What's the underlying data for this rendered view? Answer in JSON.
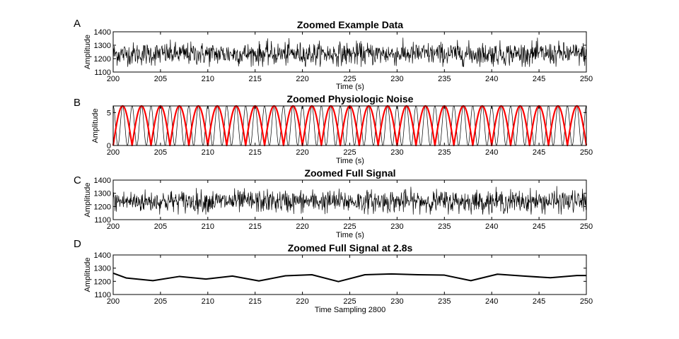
{
  "chart_data": [
    {
      "panel": "A",
      "type": "line",
      "title": "Zoomed Example Data",
      "xlabel": "Time (s)",
      "ylabel": "Amplitude",
      "xlim": [
        200,
        250
      ],
      "ylim": [
        1100,
        1400
      ],
      "xticks": [
        200,
        205,
        210,
        215,
        220,
        225,
        230,
        235,
        240,
        245,
        250
      ],
      "yticks": [
        1100,
        1200,
        1300,
        1400
      ],
      "series": [
        {
          "color": "#000000",
          "noise": {
            "mean": 1235,
            "spread": 42,
            "min": 1140,
            "max": 1355,
            "samples": 1200
          }
        }
      ]
    },
    {
      "panel": "B",
      "type": "line",
      "title": "Zoomed Physiologic Noise",
      "xlabel": "Time (s)",
      "ylabel": "Amplitude",
      "xlim": [
        200,
        250
      ],
      "ylim": [
        0,
        6
      ],
      "xticks": [
        200,
        205,
        210,
        215,
        220,
        225,
        230,
        235,
        240,
        245,
        250
      ],
      "yticks": [
        0,
        5
      ],
      "series": [
        {
          "color": "#000000",
          "wave": {
            "min": 0,
            "max": 6,
            "period": 1.0,
            "shape": "cosine"
          }
        },
        {
          "color": "#ff0000",
          "wave": {
            "min": 0,
            "max": 6,
            "period": 2.0,
            "shape": "abs-sine"
          }
        }
      ]
    },
    {
      "panel": "C",
      "type": "line",
      "title": "Zoomed Full Signal",
      "xlabel": "Time (s)",
      "ylabel": "Amplitude",
      "xlim": [
        200,
        250
      ],
      "ylim": [
        1100,
        1400
      ],
      "xticks": [
        200,
        205,
        210,
        215,
        220,
        225,
        230,
        235,
        240,
        245,
        250
      ],
      "yticks": [
        1100,
        1200,
        1300,
        1400
      ],
      "series": [
        {
          "color": "#000000",
          "noise": {
            "mean": 1238,
            "spread": 42,
            "min": 1140,
            "max": 1360,
            "samples": 1200
          }
        }
      ]
    },
    {
      "panel": "D",
      "type": "line",
      "title": "Zoomed Full Signal at 2.8s",
      "xlabel": "Time Sampling 2800",
      "ylabel": "Amplitude",
      "xlim": [
        200,
        250
      ],
      "ylim": [
        1100,
        1400
      ],
      "xticks": [
        200,
        205,
        210,
        215,
        220,
        225,
        230,
        235,
        240,
        245,
        250
      ],
      "yticks": [
        1100,
        1200,
        1300,
        1400
      ],
      "series": [
        {
          "color": "#000000",
          "x": [
            200,
            201.4,
            204.2,
            207.0,
            209.8,
            212.6,
            215.4,
            218.2,
            221.0,
            223.8,
            226.6,
            229.4,
            232.2,
            235.0,
            237.8,
            240.6,
            243.4,
            246.2,
            249.0,
            250
          ],
          "y": [
            1262,
            1225,
            1205,
            1237,
            1217,
            1240,
            1203,
            1242,
            1250,
            1198,
            1250,
            1256,
            1250,
            1247,
            1205,
            1254,
            1240,
            1227,
            1244,
            1244
          ]
        }
      ]
    }
  ]
}
